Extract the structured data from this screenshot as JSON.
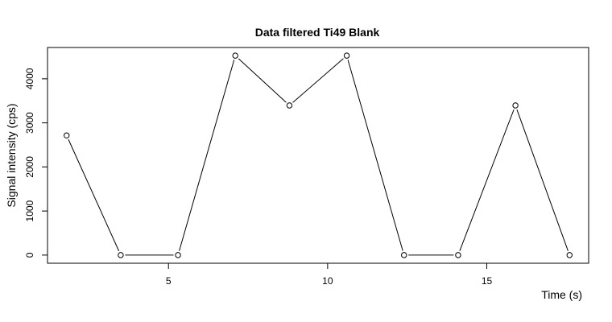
{
  "chart_data": {
    "type": "line",
    "title": "Data filtered Ti49 Blank",
    "xlabel": "Time (s)",
    "ylabel": "Signal intensity (cps)",
    "x": [
      1.8,
      3.5,
      5.3,
      7.1,
      8.8,
      10.6,
      12.4,
      14.1,
      15.9,
      17.6
    ],
    "y": [
      2715,
      0,
      0,
      4525,
      3395,
      4525,
      0,
      0,
      3395,
      0
    ],
    "xlim": [
      1.2,
      18.2
    ],
    "ylim": [
      -185,
      4710
    ],
    "xticks": [
      5,
      10,
      15
    ],
    "xtick_labels": [
      "5",
      "10",
      "15"
    ],
    "yticks": [
      0,
      1000,
      2000,
      3000,
      4000
    ],
    "ytick_labels": [
      "0",
      "1000",
      "2000",
      "3000",
      "4000"
    ],
    "grid": false,
    "legend": "none",
    "line_color": "#000000",
    "marker": "open-circle"
  }
}
